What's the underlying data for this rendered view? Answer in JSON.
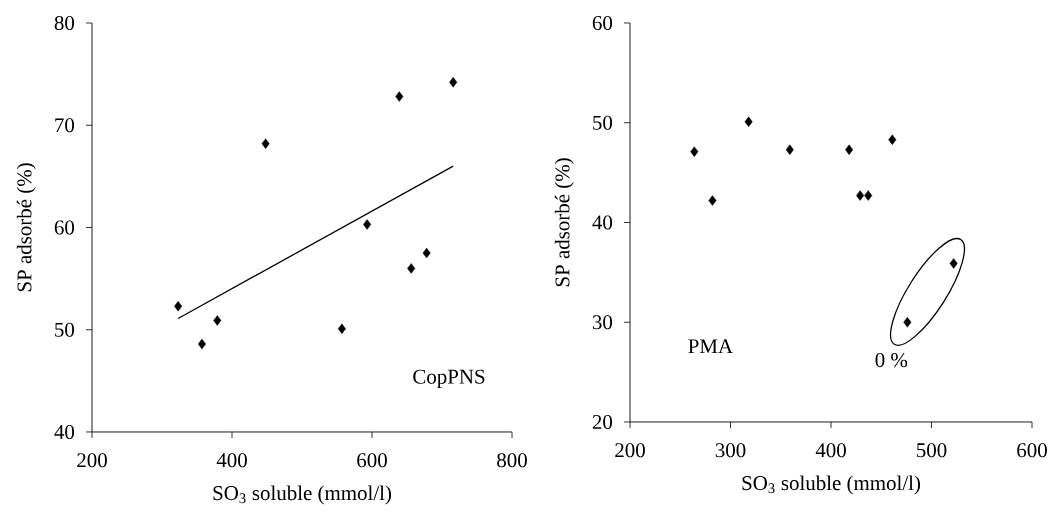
{
  "chart_data": [
    {
      "type": "scatter",
      "xlabel": "SO$_{3}$ soluble (mmol/l)",
      "ylabel": "SP adsorbé (%)",
      "xlim": [
        200,
        800
      ],
      "ylim": [
        40,
        80
      ],
      "xticks": [
        200,
        400,
        600,
        800
      ],
      "yticks": [
        40,
        50,
        60,
        70,
        80
      ],
      "marker": "diamond",
      "series": [
        {
          "color": "#000000",
          "x": [
            323,
            357,
            379,
            448,
            557,
            593,
            639,
            656,
            678,
            716
          ],
          "values": [
            52.3,
            48.6,
            50.9,
            68.2,
            50.1,
            60.3,
            72.8,
            56.0,
            57.5,
            74.2
          ]
        },
        {
          "type": "line",
          "color": "#000000",
          "marker": "none",
          "x": [
            323,
            716
          ],
          "values": [
            51.1,
            66.0
          ]
        }
      ],
      "annotations": [
        "CopPNS"
      ]
    },
    {
      "type": "scatter",
      "xlabel": "SO$_{3}$ soluble (mmol/l)",
      "ylabel": "SP adsorbé (%)",
      "xlim": [
        200,
        600
      ],
      "ylim": [
        20,
        60
      ],
      "xticks": [
        200,
        300,
        400,
        500,
        600
      ],
      "yticks": [
        20,
        30,
        40,
        50,
        60
      ],
      "marker": "diamond",
      "series": [
        {
          "color": "#000000",
          "x": [
            264,
            282,
            318,
            359,
            418,
            429,
            437,
            461,
            476,
            522
          ],
          "values": [
            47.1,
            42.2,
            50.1,
            47.3,
            47.3,
            42.7,
            42.7,
            48.3,
            30.0,
            35.9
          ]
        }
      ],
      "annotations": [
        "PMA",
        "0 %"
      ]
    }
  ]
}
